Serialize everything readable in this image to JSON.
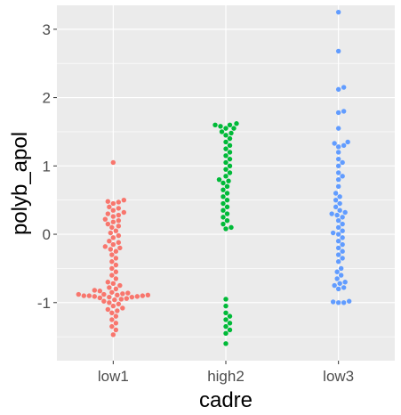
{
  "chart_data": {
    "type": "scatter",
    "subtype": "beeswarm",
    "title": "",
    "xlabel": "cadre",
    "ylabel": "polyb_apol",
    "ylim": [
      -1.85,
      3.35
    ],
    "yticks": [
      -1,
      0,
      1,
      2,
      3
    ],
    "ytick_labels": [
      "-1",
      "0",
      "1",
      "2",
      "3"
    ],
    "categories": [
      "low1",
      "high2",
      "low3"
    ],
    "grid": true,
    "legend": "none",
    "panel_background": "#ebebeb",
    "grid_color": "#ffffff",
    "series": [
      {
        "category": "low1",
        "color": "#f8766d",
        "values": [
          1.05,
          0.5,
          0.48,
          0.47,
          0.45,
          0.4,
          0.38,
          0.35,
          0.32,
          0.3,
          0.28,
          0.26,
          0.22,
          0.2,
          0.18,
          0.15,
          0.12,
          0.1,
          0.05,
          0.02,
          -0.02,
          -0.05,
          -0.1,
          -0.12,
          -0.15,
          -0.18,
          -0.2,
          -0.22,
          -0.25,
          -0.3,
          -0.35,
          -0.4,
          -0.45,
          -0.5,
          -0.55,
          -0.6,
          -0.65,
          -0.7,
          -0.72,
          -0.75,
          -0.78,
          -0.8,
          -0.82,
          -0.83,
          -0.85,
          -0.86,
          -0.87,
          -0.88,
          -0.88,
          -0.89,
          -0.89,
          -0.9,
          -0.9,
          -0.9,
          -0.91,
          -0.91,
          -0.92,
          -0.92,
          -0.93,
          -0.94,
          -0.95,
          -0.96,
          -0.98,
          -1.0,
          -1.02,
          -1.05,
          -1.08,
          -1.1,
          -1.12,
          -1.15,
          -1.2,
          -1.25,
          -1.3,
          -1.35,
          -1.4,
          -1.47
        ]
      },
      {
        "category": "high2",
        "color": "#00ba38",
        "values": [
          1.62,
          1.6,
          1.6,
          1.58,
          1.55,
          1.55,
          1.5,
          1.48,
          1.45,
          1.4,
          1.35,
          1.3,
          1.25,
          1.2,
          1.15,
          1.1,
          1.05,
          1.0,
          0.95,
          0.9,
          0.85,
          0.8,
          0.78,
          0.75,
          0.7,
          0.65,
          0.6,
          0.55,
          0.5,
          0.45,
          0.4,
          0.35,
          0.3,
          0.25,
          0.2,
          0.15,
          0.1,
          0.08,
          -0.95,
          -1.05,
          -1.15,
          -1.2,
          -1.25,
          -1.3,
          -1.35,
          -1.4,
          -1.45,
          -1.6
        ]
      },
      {
        "category": "low3",
        "color": "#619cff",
        "values": [
          3.25,
          2.68,
          2.15,
          2.12,
          1.8,
          1.78,
          1.55,
          1.35,
          1.33,
          1.3,
          1.28,
          1.2,
          1.1,
          1.05,
          1.0,
          0.9,
          0.85,
          0.8,
          0.7,
          0.6,
          0.55,
          0.5,
          0.45,
          0.4,
          0.35,
          0.32,
          0.3,
          0.28,
          0.25,
          0.2,
          0.15,
          0.1,
          0.05,
          0.02,
          0.0,
          -0.05,
          -0.1,
          -0.15,
          -0.2,
          -0.25,
          -0.3,
          -0.35,
          -0.4,
          -0.5,
          -0.55,
          -0.6,
          -0.65,
          -0.7,
          -0.72,
          -0.75,
          -0.78,
          -0.8,
          -0.98,
          -0.99,
          -1.0,
          -1.0
        ]
      }
    ]
  }
}
